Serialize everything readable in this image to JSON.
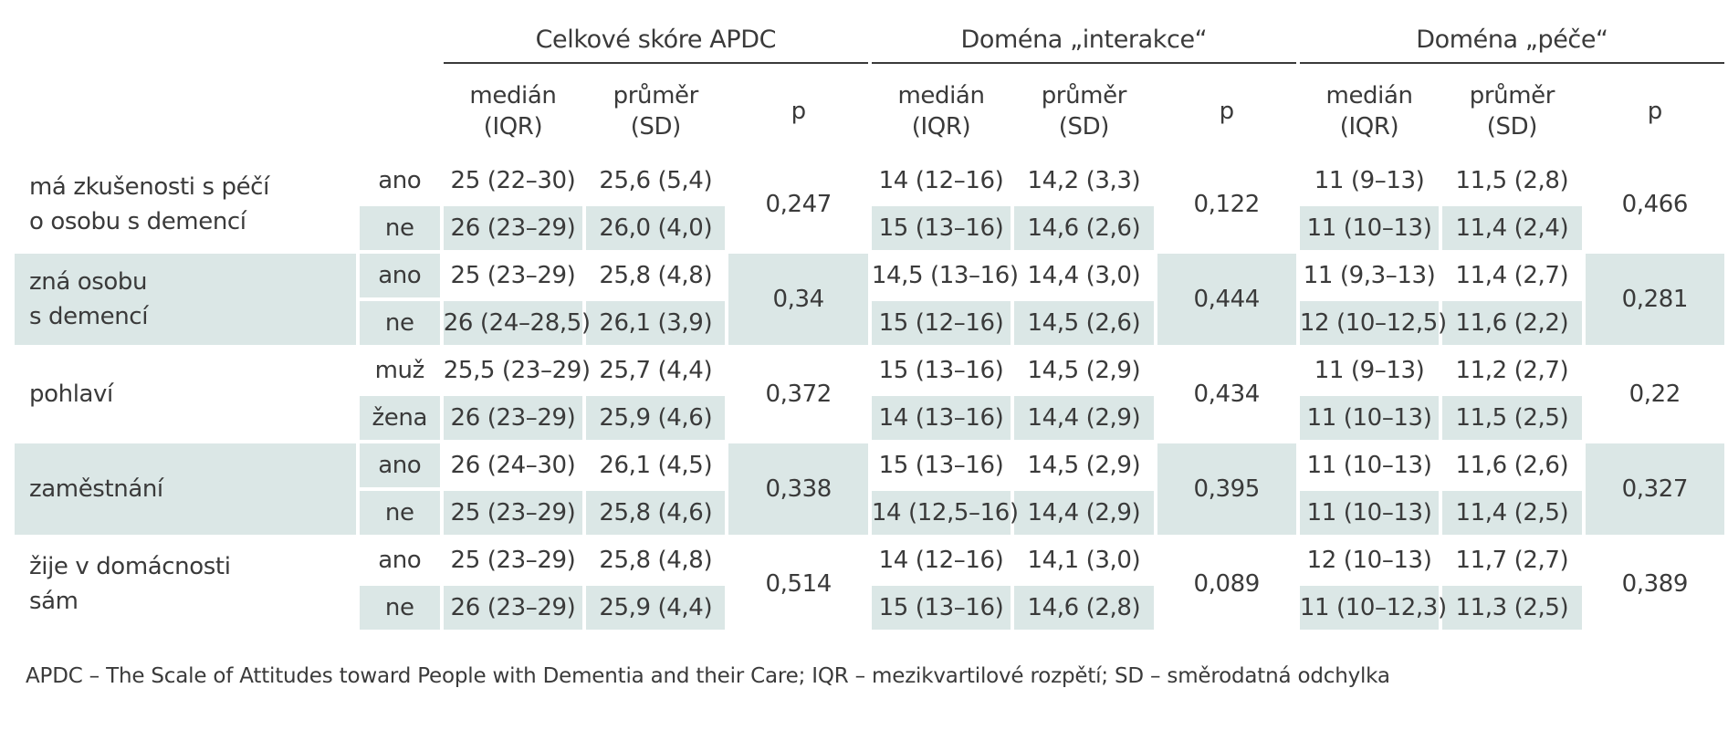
{
  "groups": [
    "Celkové skóre APDC",
    "Doména „interakce“",
    "Doména „péče“"
  ],
  "subheaders": {
    "median_1": "medián",
    "median_2": "(IQR)",
    "mean_1": "průměr",
    "mean_2": "(SD)",
    "p": "p"
  },
  "rows": [
    {
      "label_1": "má zkušenosti s péčí",
      "label_2": "o osobu s demencí",
      "shade": false,
      "sub": [
        {
          "level": "ano",
          "v": [
            "25 (22–30)",
            "25,6 (5,4)",
            "14 (12–16)",
            "14,2 (3,3)",
            "11 (9–13)",
            "11,5 (2,8)"
          ]
        },
        {
          "level": "ne",
          "v": [
            "26 (23–29)",
            "26,0 (4,0)",
            "15 (13–16)",
            "14,6 (2,6)",
            "11 (10–13)",
            "11,4 (2,4)"
          ]
        }
      ],
      "p": [
        "0,247",
        "0,122",
        "0,466"
      ]
    },
    {
      "label_1": "zná osobu",
      "label_2": "s demencí",
      "shade": true,
      "sub": [
        {
          "level": "ano",
          "v": [
            "25 (23–29)",
            "25,8 (4,8)",
            "14,5 (13–16)",
            "14,4 (3,0)",
            "11 (9,3–13)",
            "11,4 (2,7)"
          ]
        },
        {
          "level": "ne",
          "v": [
            "26 (24–28,5)",
            "26,1 (3,9)",
            "15 (12–16)",
            "14,5 (2,6)",
            "12 (10–12,5)",
            "11,6 (2,2)"
          ]
        }
      ],
      "p": [
        "0,34",
        "0,444",
        "0,281"
      ]
    },
    {
      "label_1": "pohlaví",
      "label_2": "",
      "shade": false,
      "sub": [
        {
          "level": "muž",
          "v": [
            "25,5 (23–29)",
            "25,7 (4,4)",
            "15 (13–16)",
            "14,5 (2,9)",
            "11 (9–13)",
            "11,2 (2,7)"
          ]
        },
        {
          "level": "žena",
          "v": [
            "26 (23–29)",
            "25,9 (4,6)",
            "14 (13–16)",
            "14,4 (2,9)",
            "11 (10–13)",
            "11,5 (2,5)"
          ]
        }
      ],
      "p": [
        "0,372",
        "0,434",
        "0,22"
      ]
    },
    {
      "label_1": "zaměstnání",
      "label_2": "",
      "shade": true,
      "sub": [
        {
          "level": "ano",
          "v": [
            "26 (24–30)",
            "26,1 (4,5)",
            "15 (13–16)",
            "14,5 (2,9)",
            "11 (10–13)",
            "11,6 (2,6)"
          ]
        },
        {
          "level": "ne",
          "v": [
            "25 (23–29)",
            "25,8 (4,6)",
            "14 (12,5–16)",
            "14,4 (2,9)",
            "11 (10–13)",
            "11,4 (2,5)"
          ]
        }
      ],
      "p": [
        "0,338",
        "0,395",
        "0,327"
      ]
    },
    {
      "label_1": "žije v domácnosti",
      "label_2": "sám",
      "shade": false,
      "sub": [
        {
          "level": "ano",
          "v": [
            "25 (23–29)",
            "25,8 (4,8)",
            "14 (12–16)",
            "14,1 (3,0)",
            "12 (10–13)",
            "11,7 (2,7)"
          ]
        },
        {
          "level": "ne",
          "v": [
            "26 (23–29)",
            "25,9 (4,4)",
            "15 (13–16)",
            "14,6 (2,8)",
            "11 (10–12,3)",
            "11,3 (2,5)"
          ]
        }
      ],
      "p": [
        "0,514",
        "0,089",
        "0,389"
      ]
    }
  ],
  "footnote": "APDC – The Scale of Attitudes toward People with Dementia and their Care; IQR – mezikvartilové rozpětí; SD – směrodatná odchylka",
  "colors": {
    "shade": "#dbe7e6",
    "text": "#3a3a3a",
    "rule": "#3a3a3a"
  }
}
